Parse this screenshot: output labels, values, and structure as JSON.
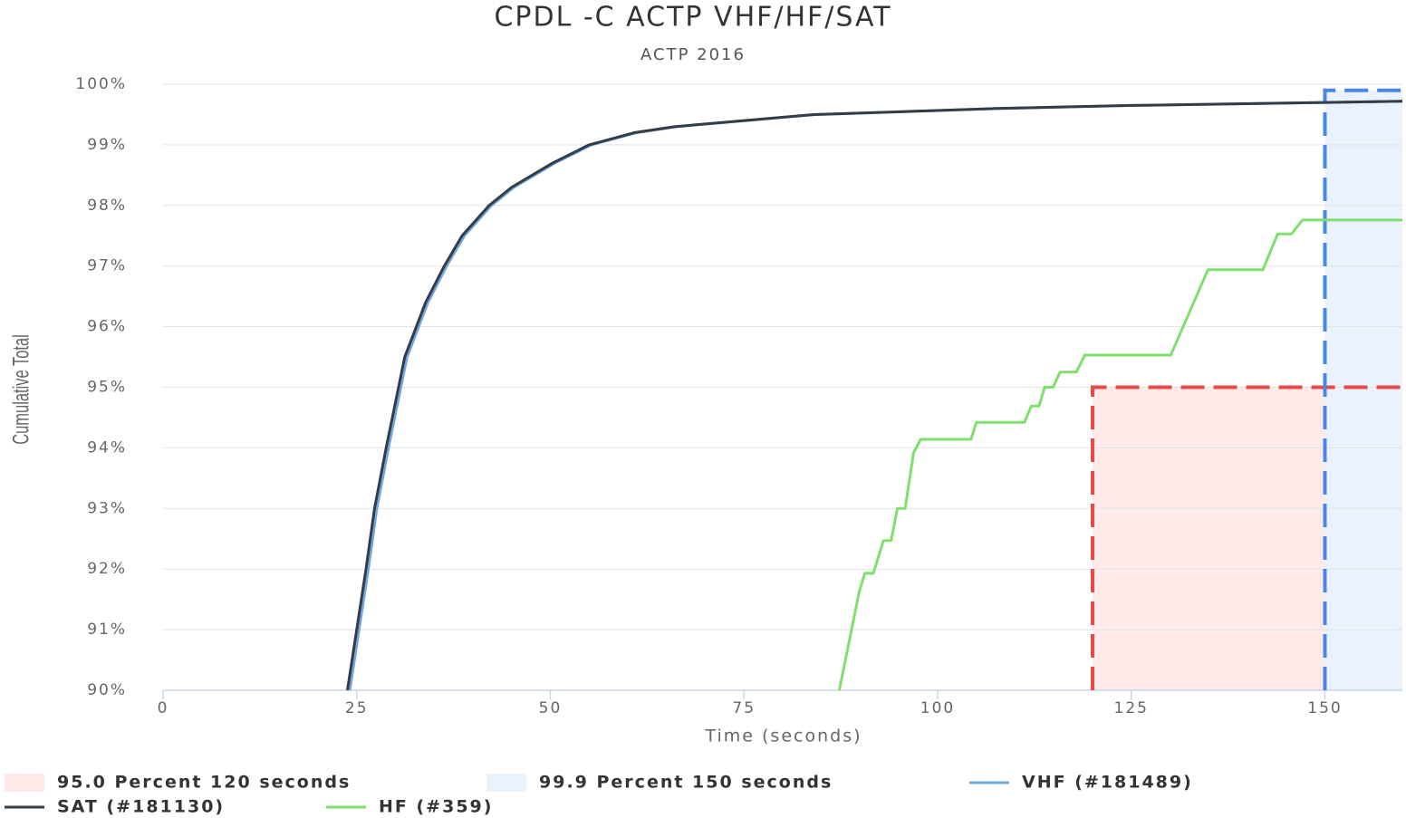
{
  "chart_data": {
    "type": "line",
    "title": "CPDL -C ACTP VHF/HF/SAT",
    "subtitle": "ACTP 2016",
    "x_label": "Time (seconds)",
    "y_label": "Cumulative Total",
    "xlim": [
      0,
      160
    ],
    "ylim": [
      90,
      100
    ],
    "xticks": [
      0,
      25,
      50,
      75,
      100,
      125,
      150
    ],
    "yticks": [
      {
        "value": 90,
        "label": "90%"
      },
      {
        "value": 91,
        "label": "91%"
      },
      {
        "value": 92,
        "label": "92%"
      },
      {
        "value": 93,
        "label": "93%"
      },
      {
        "value": 94,
        "label": "94%"
      },
      {
        "value": 95,
        "label": "95%"
      },
      {
        "value": 96,
        "label": "96%"
      },
      {
        "value": 97,
        "label": "97%"
      },
      {
        "value": 98,
        "label": "98%"
      },
      {
        "value": 99,
        "label": "99%"
      },
      {
        "value": 100,
        "label": "100%"
      }
    ],
    "grid": true,
    "bands": [
      {
        "name": "95.0 Percent 120 seconds",
        "x": 120,
        "y": 95,
        "color": "#e84a4a",
        "fill": "#ffeaea"
      },
      {
        "name": "99.9 Percent 150 seconds",
        "x": 150,
        "y": 99.9,
        "color": "#4a86e8",
        "fill": "#eaf2fd"
      }
    ],
    "series": [
      {
        "name": "VHF (#181489)",
        "color": "#6fa8dc",
        "x": [
          24.1,
          26.5,
          27.6,
          29.1,
          31.5,
          34.2,
          36.6,
          38.9,
          42.4,
          45.3,
          50.6,
          55.3,
          61.1,
          66.3,
          75.3,
          84.3,
          96.3,
          107.9,
          125.3,
          150.3,
          160
        ],
        "values": [
          90,
          92,
          93,
          94,
          95.5,
          96.4,
          97,
          97.5,
          98,
          98.3,
          98.7,
          99,
          99.2,
          99.3,
          99.4,
          99.5,
          99.55,
          99.6,
          99.65,
          99.7,
          99.72
        ]
      },
      {
        "name": "SAT (#181130)",
        "color": "#333d47",
        "x": [
          23.8,
          26.2,
          27.3,
          28.8,
          31.2,
          33.9,
          36.3,
          38.6,
          42.1,
          45,
          50.3,
          55,
          60.8,
          66,
          75,
          84,
          96,
          107.6,
          125,
          150,
          160
        ],
        "values": [
          90,
          92,
          93,
          94,
          95.5,
          96.4,
          97,
          97.5,
          98,
          98.3,
          98.7,
          99,
          99.2,
          99.3,
          99.4,
          99.5,
          99.55,
          99.6,
          99.65,
          99.7,
          99.72
        ]
      },
      {
        "name": "HF (#359)",
        "color": "#7ee06b",
        "x": [
          87.3,
          89.9,
          90.6,
          91.7,
          93,
          94,
          94.8,
          95.8,
          96.9,
          97.8,
          104.3,
          105,
          111.2,
          112.1,
          113.1,
          113.8,
          114.9,
          115.8,
          117.9,
          119,
          130.1,
          134.9,
          142,
          143.9,
          145.7,
          147.1,
          160
        ],
        "values": [
          90,
          91.64,
          91.93,
          91.93,
          92.47,
          92.47,
          93,
          93,
          93.92,
          94.14,
          94.14,
          94.42,
          94.42,
          94.69,
          94.69,
          95,
          95,
          95.25,
          95.25,
          95.53,
          95.53,
          96.94,
          96.94,
          97.53,
          97.53,
          97.76,
          97.76
        ]
      }
    ]
  }
}
